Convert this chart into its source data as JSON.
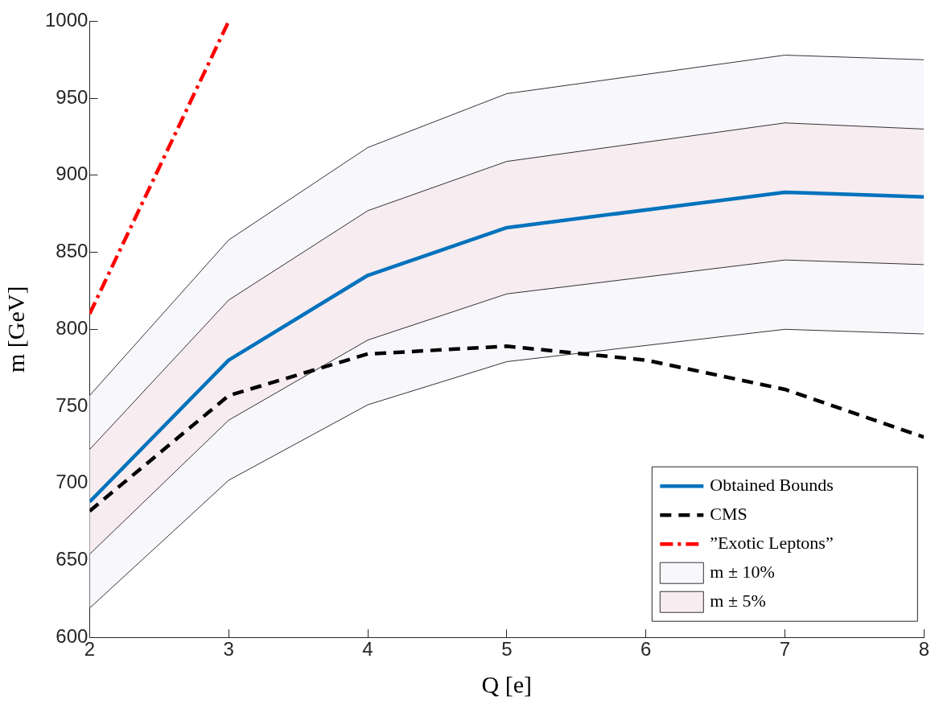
{
  "chart_data": {
    "type": "line",
    "xlabel": "Q [e]",
    "ylabel": "m [GeV]",
    "xlim": [
      2,
      8
    ],
    "xticks": [
      2,
      3,
      4,
      5,
      6,
      7,
      8
    ],
    "ylim": [
      600,
      1000
    ],
    "yticks": [
      600,
      650,
      700,
      750,
      800,
      850,
      900,
      950,
      1000
    ],
    "grid": false,
    "legend": "bottom right",
    "marker": "none",
    "series": [
      {
        "name": "Obtained Bounds",
        "color": "#0072bd",
        "line_style": "solid",
        "x": [
          2,
          3,
          4,
          5,
          7,
          8
        ],
        "values": [
          688,
          780,
          835,
          866,
          889,
          886
        ]
      },
      {
        "name": "CMS",
        "color": "#000000",
        "line_style": "dashed",
        "x": [
          2,
          3,
          4,
          5,
          6,
          7,
          8
        ],
        "values": [
          682,
          757,
          784,
          789,
          780,
          761,
          730
        ]
      },
      {
        "name": "”Exotic Leptons”",
        "color": "#ff0000",
        "line_style": "dashdot",
        "x": [
          2,
          3
        ],
        "values": [
          810,
          1000
        ]
      },
      {
        "name": "m ± 10%",
        "type": "area",
        "color": "#f8f8fc",
        "x": [
          2,
          3,
          4,
          5,
          7,
          8
        ],
        "values": [
          757,
          858,
          918,
          953,
          978,
          975
        ]
      },
      {
        "type": "line",
        "color": "#000000",
        "line_style": "solid",
        "x": [
          2,
          3,
          4,
          5,
          7,
          8
        ],
        "values": [
          619,
          702,
          751,
          779,
          800,
          797
        ]
      },
      {
        "name": "m ± 5%",
        "type": "area",
        "color": "#f7ecef",
        "x": [
          2,
          3,
          4,
          5,
          7,
          8
        ],
        "values": [
          722,
          819,
          877,
          909,
          934,
          930
        ]
      },
      {
        "type": "line",
        "color": "#000000",
        "line_style": "solid",
        "x": [
          2,
          3,
          4,
          5,
          7,
          8
        ],
        "values": [
          654,
          741,
          793,
          823,
          845,
          842
        ]
      }
    ]
  }
}
